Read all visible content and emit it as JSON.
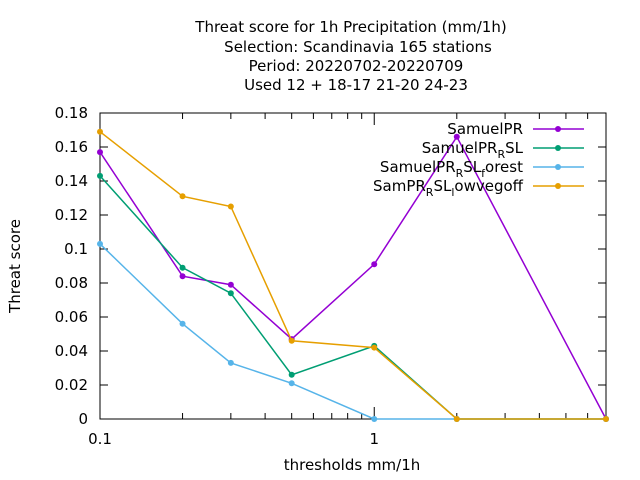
{
  "chart_data": {
    "type": "line",
    "title_lines": [
      "Threat score  for 1h Precipitation (mm/1h)",
      "Selection: Scandinavia    165 stations",
      "Period: 20220702-20220709",
      "Used  12 + 18-17 21-20 24-23"
    ],
    "xlabel": "thresholds mm/1h",
    "ylabel": "Threat score",
    "x_scale": "log",
    "xlim": [
      0.1,
      7
    ],
    "ylim": [
      0,
      0.18
    ],
    "x_ticks": [
      {
        "value": 0.1,
        "label": "0.1"
      },
      {
        "value": 1,
        "label": "1"
      }
    ],
    "y_ticks": [
      {
        "value": 0,
        "label": "0"
      },
      {
        "value": 0.02,
        "label": "0.02"
      },
      {
        "value": 0.04,
        "label": "0.04"
      },
      {
        "value": 0.06,
        "label": "0.06"
      },
      {
        "value": 0.08,
        "label": "0.08"
      },
      {
        "value": 0.1,
        "label": "0.1"
      },
      {
        "value": 0.12,
        "label": "0.12"
      },
      {
        "value": 0.14,
        "label": "0.14"
      },
      {
        "value": 0.16,
        "label": "0.16"
      },
      {
        "value": 0.18,
        "label": "0.18"
      }
    ],
    "grid": false,
    "legend_position": "top-right",
    "x": [
      0.1,
      0.2,
      0.3,
      0.5,
      1,
      2,
      7
    ],
    "series": [
      {
        "name": "SamuelPR",
        "legend_main": "SamuelPR",
        "legend_sub": "",
        "legend_tail": "",
        "color": "#9400d3",
        "values": [
          0.157,
          0.084,
          0.079,
          0.047,
          0.091,
          0.166,
          0.0
        ]
      },
      {
        "name": "SamuelPR_R SL",
        "legend_main": "SamuelPR",
        "legend_sub": "R",
        "legend_tail": "SL",
        "color": "#009e73",
        "values": [
          0.143,
          0.089,
          0.074,
          0.026,
          0.043,
          0.0,
          0.0
        ]
      },
      {
        "name": "SamuelPR_R SL_f orest",
        "legend_main": "SamuelPR",
        "legend_sub": "R",
        "legend_tail": "SL",
        "legend_sub2": "f",
        "legend_tail2": "orest",
        "color": "#56b4e9",
        "values": [
          0.103,
          0.056,
          0.033,
          0.021,
          0.0,
          0.0,
          0.0
        ]
      },
      {
        "name": "SamPR_R SL_l owvegoff",
        "legend_main": "SamPR",
        "legend_sub": "R",
        "legend_tail": "SL",
        "legend_sub2": "l",
        "legend_tail2": "owvegoff",
        "color": "#e69f00",
        "values": [
          0.169,
          0.131,
          0.125,
          0.046,
          0.042,
          0.0,
          0.0
        ]
      }
    ]
  }
}
